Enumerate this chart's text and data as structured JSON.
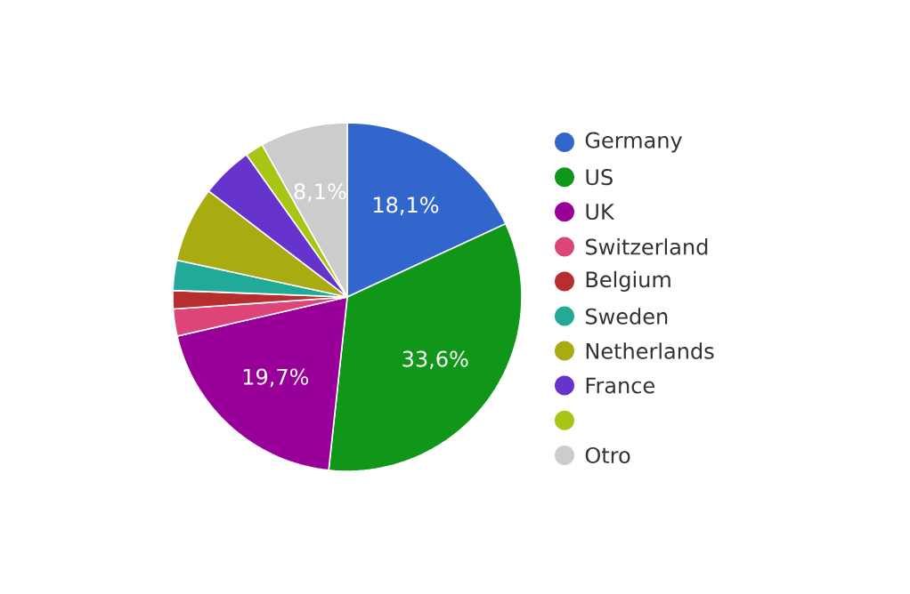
{
  "chart_data": {
    "type": "pie",
    "categories": [
      "Germany",
      "US",
      "UK",
      "Switzerland",
      "Belgium",
      "Sweden",
      "Netherlands",
      "France",
      null,
      "Otro"
    ],
    "values": [
      18.1,
      33.6,
      19.7,
      2.5,
      1.7,
      2.8,
      7.0,
      4.8,
      1.7,
      8.1
    ],
    "value_labels": [
      "18,1%",
      "33,6%",
      "19,7%",
      null,
      null,
      null,
      null,
      null,
      null,
      "8,1%"
    ],
    "colors": [
      "#3366cc",
      "#109618",
      "#990099",
      "#dd4477",
      "#b82e2e",
      "#22aa99",
      "#aaaa11",
      "#6633cc",
      "#a8c414",
      "#cccccc"
    ],
    "legend": "right"
  }
}
